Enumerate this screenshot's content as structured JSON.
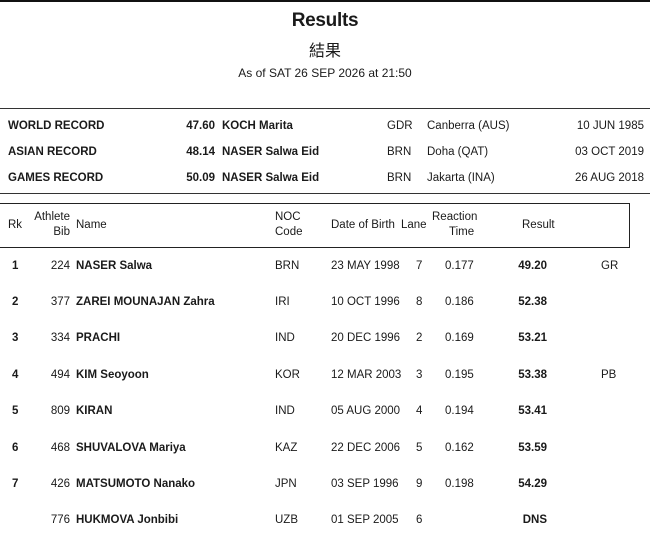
{
  "header": {
    "title": "Results",
    "subtitle": "結果",
    "timestamp": "As of SAT 26 SEP 2026 at 21:50"
  },
  "records": [
    {
      "name": "WORLD RECORD",
      "value": "47.60",
      "athlete": "KOCH Marita",
      "noc": "GDR",
      "venue": "Canberra (AUS)",
      "date": "10 JUN 1985"
    },
    {
      "name": "ASIAN RECORD",
      "value": "48.14",
      "athlete": "NASER Salwa Eid",
      "noc": "BRN",
      "venue": "Doha (QAT)",
      "date": "03 OCT 2019"
    },
    {
      "name": "GAMES RECORD",
      "value": "50.09",
      "athlete": "NASER Salwa Eid",
      "noc": "BRN",
      "venue": "Jakarta (INA)",
      "date": "26 AUG 2018"
    }
  ],
  "columns": {
    "rk": "Rk",
    "bib_1": "Athlete",
    "bib_2": "Bib",
    "name": "Name",
    "noc_1": "NOC",
    "noc_2": "Code",
    "dob": "Date of Birth",
    "lane": "Lane",
    "rt_1": "Reaction",
    "rt_2": "Time",
    "result": "Result"
  },
  "rows": [
    {
      "rk": "1",
      "bib": "224",
      "name": "NASER Salwa",
      "noc": "BRN",
      "dob": "23 MAY 1998",
      "lane": "7",
      "rt": "0.177",
      "result": "49.20",
      "q": "GR"
    },
    {
      "rk": "2",
      "bib": "377",
      "name": "ZAREI MOUNAJAN Zahra",
      "noc": "IRI",
      "dob": "10 OCT 1996",
      "lane": "8",
      "rt": "0.186",
      "result": "52.38",
      "q": ""
    },
    {
      "rk": "3",
      "bib": "334",
      "name": "PRACHI",
      "noc": "IND",
      "dob": "20 DEC 1996",
      "lane": "2",
      "rt": "0.169",
      "result": "53.21",
      "q": ""
    },
    {
      "rk": "4",
      "bib": "494",
      "name": "KIM Seoyoon",
      "noc": "KOR",
      "dob": "12 MAR 2003",
      "lane": "3",
      "rt": "0.195",
      "result": "53.38",
      "q": "PB"
    },
    {
      "rk": "5",
      "bib": "809",
      "name": "KIRAN",
      "noc": "IND",
      "dob": "05 AUG 2000",
      "lane": "4",
      "rt": "0.194",
      "result": "53.41",
      "q": ""
    },
    {
      "rk": "6",
      "bib": "468",
      "name": "SHUVALOVA Mariya",
      "noc": "KAZ",
      "dob": "22 DEC 2006",
      "lane": "5",
      "rt": "0.162",
      "result": "53.59",
      "q": ""
    },
    {
      "rk": "7",
      "bib": "426",
      "name": "MATSUMOTO Nanako",
      "noc": "JPN",
      "dob": "03 SEP 1996",
      "lane": "9",
      "rt": "0.198",
      "result": "54.29",
      "q": ""
    },
    {
      "rk": "",
      "bib": "776",
      "name": "HUKMOVA Jonbibi",
      "noc": "UZB",
      "dob": "01 SEP 2005",
      "lane": "6",
      "rt": "",
      "result": "DNS",
      "q": ""
    }
  ]
}
